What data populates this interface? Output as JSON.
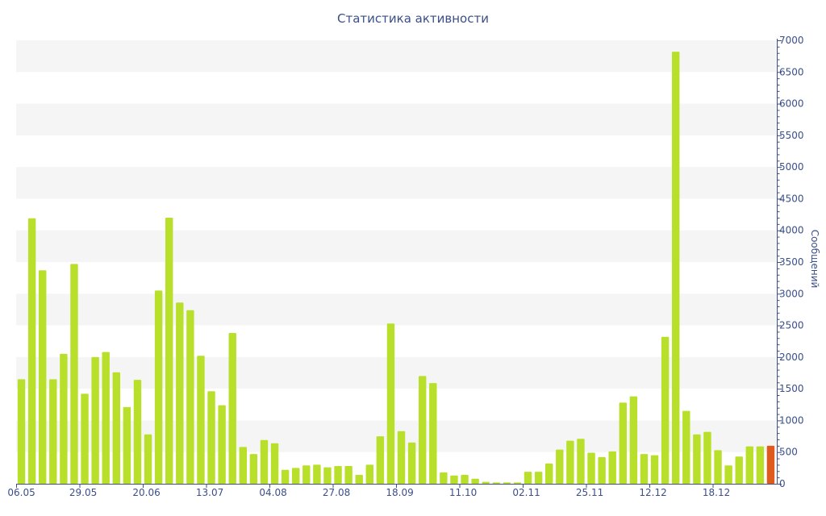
{
  "chart_data": {
    "type": "bar",
    "title": "Статистика активности",
    "ylabel": "Сообщений",
    "xlabel": "",
    "ylim": [
      0,
      7000
    ],
    "y_ticks": [
      0,
      500,
      1000,
      1500,
      2000,
      2500,
      3000,
      3500,
      4000,
      4500,
      5000,
      5500,
      6000,
      6500,
      7000
    ],
    "x_tick_labels": [
      {
        "label": "06.05",
        "index": 0
      },
      {
        "label": "29.05",
        "index": 6
      },
      {
        "label": "20.06",
        "index": 12
      },
      {
        "label": "13.07",
        "index": 18
      },
      {
        "label": "04.08",
        "index": 24
      },
      {
        "label": "27.08",
        "index": 30
      },
      {
        "label": "18.09",
        "index": 36
      },
      {
        "label": "11.10",
        "index": 42
      },
      {
        "label": "02.11",
        "index": 48
      },
      {
        "label": "25.11",
        "index": 54
      },
      {
        "label": "12.12",
        "index": 60
      },
      {
        "label": "18.12",
        "index": 66
      }
    ],
    "values": [
      1650,
      4190,
      3370,
      1650,
      2050,
      3470,
      1420,
      2000,
      2080,
      1760,
      1210,
      1640,
      780,
      3050,
      4200,
      2860,
      2740,
      2020,
      1460,
      1240,
      2380,
      580,
      470,
      690,
      640,
      220,
      250,
      290,
      300,
      260,
      280,
      280,
      140,
      300,
      750,
      2530,
      830,
      650,
      1700,
      1590,
      180,
      130,
      140,
      80,
      30,
      20,
      20,
      20,
      190,
      190,
      320,
      540,
      680,
      710,
      490,
      420,
      510,
      1280,
      1380,
      470,
      450,
      2320,
      6820,
      1150,
      780,
      820,
      530,
      290,
      430,
      590,
      590,
      600
    ],
    "highlight_index": 71,
    "colors": {
      "bar": "#b8e02a",
      "highlight": "#e05a1e",
      "axis": "#3a4f8a",
      "band": "#f5f5f5"
    },
    "grid": "alternating-bands",
    "y_axis_position": "right"
  }
}
